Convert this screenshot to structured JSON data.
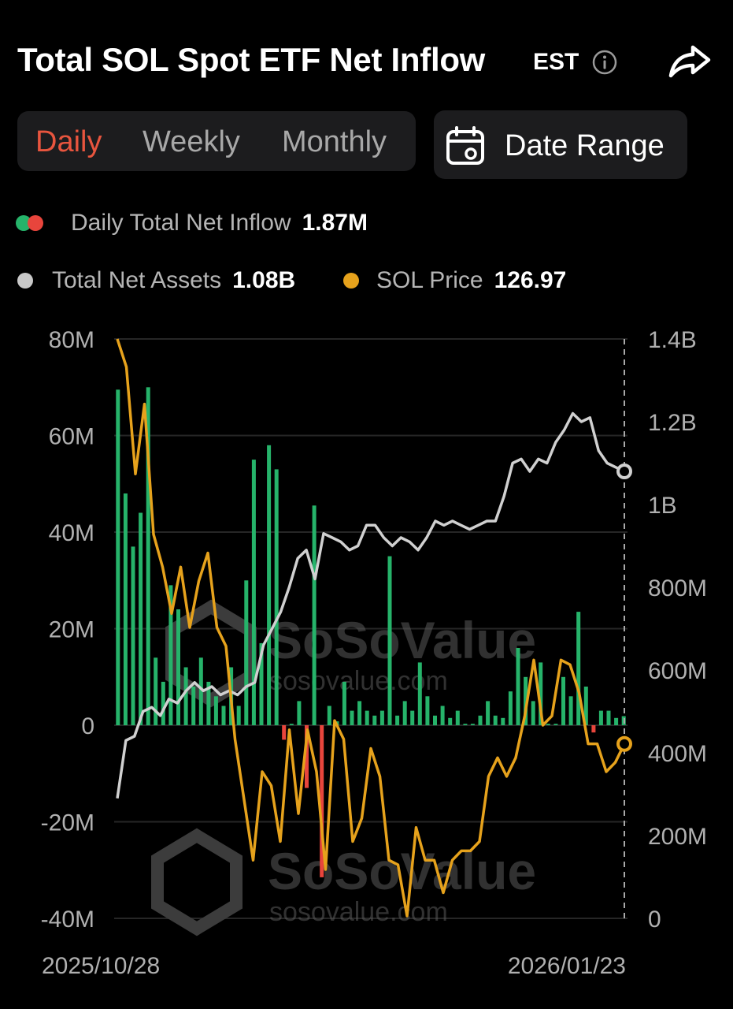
{
  "header": {
    "title": "Total SOL Spot ETF Net Inflow",
    "timezone": "EST",
    "info_icon": "info-circle-icon",
    "share_icon": "share-arrow-icon"
  },
  "period_tabs": [
    {
      "label": "Daily",
      "active": true
    },
    {
      "label": "Weekly",
      "active": false
    },
    {
      "label": "Monthly",
      "active": false
    }
  ],
  "date_range": {
    "label": "Date Range",
    "icon": "calendar-icon"
  },
  "legend": {
    "inflow": {
      "label": "Daily Total Net Inflow",
      "value": "1.87M"
    },
    "assets": {
      "label": "Total Net Assets",
      "value": "1.08B",
      "color": "#c8c8c8"
    },
    "price": {
      "label": "SOL Price",
      "value": "126.97",
      "color": "#e6a21c"
    }
  },
  "watermark": {
    "brand": "SoSoValue",
    "url": "sosovalue.com"
  },
  "colors": {
    "positive": "#26b36a",
    "negative": "#e8453c",
    "assets": "#d0d0d0",
    "price": "#e6a21c",
    "accent": "#e8553e"
  },
  "chart_data": {
    "type": "bar",
    "x_labels": [
      "2025/10/28",
      "2026/01/23"
    ],
    "left_axis": {
      "ticks": [
        "80M",
        "60M",
        "40M",
        "20M",
        "0",
        "-20M",
        "-40M"
      ],
      "ylim": [
        -40,
        80
      ],
      "unit": "M"
    },
    "right_axis": {
      "ticks": [
        "1.4B",
        "1.2B",
        "1B",
        "800M",
        "600M",
        "400M",
        "200M",
        "0"
      ],
      "ylim": [
        0,
        1400
      ],
      "unit": "M"
    },
    "series": [
      {
        "name": "Daily Total Net Inflow",
        "type": "bar",
        "unit": "M",
        "values": [
          69.5,
          48,
          37,
          44,
          70,
          14,
          9,
          29,
          24,
          12,
          8,
          14,
          9,
          6,
          4,
          12,
          4,
          30,
          55,
          17,
          58,
          53,
          -3,
          0.3,
          5,
          -13,
          45.5,
          -31.5,
          4,
          0.8,
          9,
          3,
          5,
          3,
          2,
          3,
          35,
          2,
          5,
          3,
          13,
          6,
          2,
          4,
          1.5,
          3,
          0.3,
          0.3,
          2,
          5,
          2,
          1.5,
          7,
          16,
          10,
          5,
          13,
          0.3,
          0.3,
          10,
          6,
          23.5,
          8,
          -1.5,
          3,
          3,
          1.5,
          1.87
        ]
      },
      {
        "name": "Total Net Assets",
        "type": "line",
        "unit": "M",
        "values": [
          290,
          430,
          440,
          500,
          510,
          490,
          530,
          520,
          550,
          570,
          550,
          560,
          540,
          550,
          540,
          560,
          570,
          660,
          700,
          740,
          800,
          870,
          890,
          820,
          930,
          920,
          910,
          890,
          900,
          950,
          950,
          920,
          900,
          920,
          910,
          890,
          920,
          960,
          950,
          960,
          950,
          940,
          950,
          960,
          960,
          1020,
          1100,
          1110,
          1080,
          1110,
          1100,
          1150,
          1180,
          1220,
          1200,
          1210,
          1130,
          1100,
          1090,
          1080
        ],
        "end_value": 1080
      },
      {
        "name": "SOL Price",
        "type": "line",
        "unit": "USD",
        "values": [
          214,
          208,
          185,
          200,
          172,
          165,
          155,
          165,
          152,
          162,
          168,
          152,
          148,
          128,
          115,
          102,
          121,
          118,
          106,
          130,
          112,
          130,
          121,
          100,
          132,
          128,
          106,
          111,
          126,
          120,
          102,
          101,
          90,
          109,
          102,
          102,
          95,
          102,
          104,
          104,
          106,
          120,
          124,
          120,
          124,
          133,
          145,
          131,
          133,
          145,
          144,
          138,
          127,
          127,
          121,
          123,
          126.97
        ]
      }
    ]
  }
}
